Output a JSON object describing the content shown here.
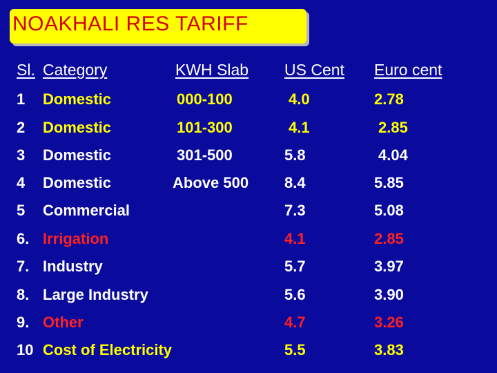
{
  "title": "NOAKHALI RES TARIFF",
  "headers": {
    "sl": "Sl.",
    "category": "Category",
    "slab": "KWH Slab",
    "us": "US Cent",
    "euro": "Euro cent"
  },
  "rows": [
    {
      "sl": "1",
      "category": "Domestic",
      "slab": "000-100",
      "us": "4.0",
      "euro": "2.78"
    },
    {
      "sl": "2",
      "category": "Domestic",
      "slab": "101-300",
      "us": "4.1",
      "euro": "2.85"
    },
    {
      "sl": "3",
      "category": "Domestic",
      "slab": "301-500",
      "us": "5.8",
      "euro": "4.04"
    },
    {
      "sl": "4",
      "category": "Domestic",
      "slab": "Above 500",
      "us": "8.4",
      "euro": "5.85"
    },
    {
      "sl": "5",
      "category": "Commercial",
      "slab": "",
      "us": "7.3",
      "euro": "5.08"
    },
    {
      "sl": "6.",
      "category": "Irrigation",
      "slab": "",
      "us": "4.1",
      "euro": "2.85"
    },
    {
      "sl": "7.",
      "category": "Industry",
      "slab": "",
      "us": "5.7",
      "euro": "3.97"
    },
    {
      "sl": "8.",
      "category": "Large Industry",
      "slab": "",
      "us": "5.6",
      "euro": "3.90"
    },
    {
      "sl": "9.",
      "category": "Other",
      "slab": "",
      "us": "4.7",
      "euro": "3.26"
    },
    {
      "sl": "10",
      "category": "Cost of Electricity",
      "slab": "",
      "us": "5.5",
      "euro": "3.83"
    }
  ],
  "colors": {
    "background": "#0a0a9c",
    "title_box": "#ffff00",
    "title_text": "#d40000",
    "white_text": "#ffffff",
    "yellow_text": "#ffff00",
    "red_text": "#ff2020"
  }
}
